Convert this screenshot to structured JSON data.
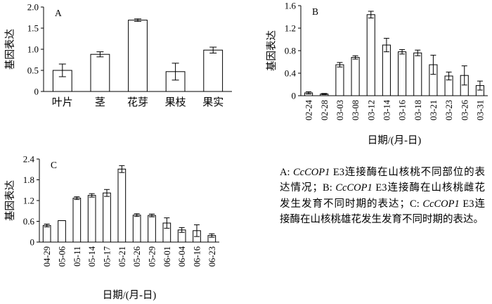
{
  "figure": {
    "background": "#ffffff",
    "axis_color": "#000000",
    "bar_fill": "#ffffff",
    "bar_border": "#000000"
  },
  "chart_data": [
    {
      "id": "A",
      "type": "bar",
      "panel_label": "A",
      "ylabel": "基因表达",
      "xlabel": "",
      "ylim": [
        0,
        2.0
      ],
      "yticks": [
        0,
        0.5,
        1.0,
        1.5,
        2.0
      ],
      "ytick_labels": [
        "0",
        "0.5",
        "1.0",
        "1.5",
        "2.0"
      ],
      "categories": [
        "叶片",
        "茎",
        "花芽",
        "果枝",
        "果实"
      ],
      "values": [
        0.5,
        0.88,
        1.69,
        0.47,
        0.98
      ],
      "errors": [
        0.15,
        0.06,
        0.03,
        0.2,
        0.07
      ],
      "legend": "none",
      "grid": false
    },
    {
      "id": "B",
      "type": "bar",
      "panel_label": "B",
      "ylabel": "基因表达",
      "xlabel": "日期/(月-日)",
      "ylim": [
        0,
        1.6
      ],
      "yticks": [
        0,
        0.4,
        0.8,
        1.2,
        1.6
      ],
      "ytick_labels": [
        "0",
        "0.4",
        "0.8",
        "1.2",
        "1.6"
      ],
      "categories": [
        "02-24",
        "02-28",
        "03-03",
        "03-08",
        "03-12",
        "03-14",
        "03-16",
        "03-18",
        "03-21",
        "03-23",
        "03-26",
        "03-31"
      ],
      "values": [
        0.05,
        0.03,
        0.55,
        0.68,
        1.44,
        0.9,
        0.78,
        0.76,
        0.55,
        0.35,
        0.36,
        0.18
      ],
      "errors": [
        0.02,
        0.01,
        0.04,
        0.03,
        0.06,
        0.12,
        0.04,
        0.05,
        0.17,
        0.07,
        0.17,
        0.08
      ],
      "legend": "none",
      "grid": false
    },
    {
      "id": "C",
      "type": "bar",
      "panel_label": "C",
      "ylabel": "基因表达",
      "xlabel": "日期/(月-日)",
      "ylim": [
        0,
        2.4
      ],
      "yticks": [
        0,
        0.6,
        1.2,
        1.8,
        2.4
      ],
      "ytick_labels": [
        "0",
        "0.6",
        "1.2",
        "1.8",
        "2.4"
      ],
      "categories": [
        "04-29",
        "05-06",
        "05-11",
        "05-14",
        "05-17",
        "05-21",
        "05-26",
        "05-29",
        "06-01",
        "06-04",
        "06-16",
        "06-23"
      ],
      "values": [
        0.48,
        0.62,
        1.27,
        1.35,
        1.42,
        2.11,
        0.78,
        0.77,
        0.55,
        0.35,
        0.33,
        0.19
      ],
      "errors": [
        0.04,
        0,
        0.04,
        0.05,
        0.1,
        0.1,
        0.04,
        0.04,
        0.15,
        0.07,
        0.17,
        0.05
      ],
      "legend": "none",
      "grid": false
    }
  ],
  "caption": {
    "segments": [
      {
        "text": "A: ",
        "italic": false
      },
      {
        "text": "CcCOP1",
        "italic": true
      },
      {
        "text": " E3连接酶在山核桃不同部位的表达情况；B: ",
        "italic": false
      },
      {
        "text": "CcCOP1",
        "italic": true
      },
      {
        "text": " E3连接酶在山核桃雌花发生发育不同时期的表达；C: ",
        "italic": false
      },
      {
        "text": "CcCOP1",
        "italic": true
      },
      {
        "text": " E3连接酶在山核桃雄花发生发育不同时期的表达。",
        "italic": false
      }
    ]
  }
}
